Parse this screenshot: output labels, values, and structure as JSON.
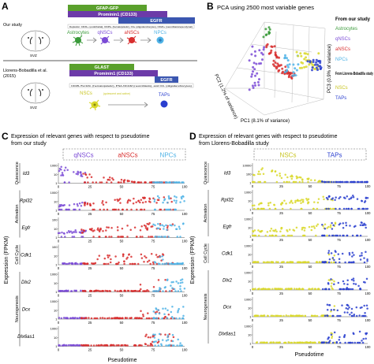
{
  "panel_letters": [
    "A",
    "B",
    "C",
    "D"
  ],
  "panel_a": {
    "our_study_label": "Our study",
    "llorens_label_1": "Llorens-Bobadilla et al.",
    "llorens_label_2": "(2015)",
    "svz_label": "SVZ",
    "top_bars": [
      "GFAP-GFP",
      "Prominin1 (CD133)",
      "EGFR"
    ],
    "top_depletion_note": "Depletion: CD31+ (endothelial), CD45+ (hematopoietic), O4+ (oligodendrocytes), CD24+ (neuroblasts/ependymal)",
    "top_cells": [
      "Astrocytes",
      "qNSCs",
      "aNSCs",
      "NPCs"
    ],
    "bottom_bars": [
      "GLAST",
      "Prominin1 (CD133)",
      "EGFR"
    ],
    "bottom_depletion_note": "CD45-/Ter119- (hematopoietic), PSA-NCAM (neuroblasts), and O4- (oligodendrocytes)",
    "bottom_cells": [
      "NSCs",
      "TAPs"
    ],
    "nscs_subnote": "(quiescent and active)"
  },
  "panel_b": {
    "title": "PCA using 2500 most variable genes",
    "pc1_label": "PC1 (8.1% of variance)",
    "pc2_label": "PC2 (1.2% of variance)",
    "pc3_label": "PC3 (0.9% of variance)",
    "legend_ours_title": "From our study",
    "legend_ours": [
      "Astrocytes",
      "qNSCs",
      "aNSCs",
      "NPCs"
    ],
    "legend_llorens_title": "From Llorens-Bobadilla study",
    "legend_llorens": [
      "NSCs",
      "TAPs"
    ]
  },
  "panel_c": {
    "title_1": "Expression of relevant genes with respect to pseudotime",
    "title_2": "from our study",
    "groups": [
      "qNSCs",
      "aNSCs",
      "NPCs"
    ],
    "ylabel": "Expression (FPKM)",
    "xlabel": "Pseudotime"
  },
  "panel_d": {
    "title_1": "Expression of relevant genes with respect to pseudotime",
    "title_2": "from Llorens-Bobadilla study",
    "groups": [
      "NSCs",
      "TAPs"
    ],
    "ylabel": "Expression (FPKM)",
    "xlabel": "Pseudotime"
  },
  "categories": [
    "Quiescence",
    "Activation",
    "Cell Cycle",
    "Neurogenesis"
  ],
  "colors": {
    "qNSCs": "#7b4bd6",
    "aNSCs": "#d82e2e",
    "NPCs": "#4fb3e6",
    "Astrocytes": "#3a9a3a",
    "NSCs": "#d9d82a",
    "TAPs": "#2a3fcf",
    "green_bar": "#5aa02c",
    "purple_bar": "#6c3aa8",
    "blue_bar": "#3a56b0"
  },
  "chart_data": [
    {
      "type": "scatter",
      "title": "PCA using 2500 most variable genes",
      "axes": [
        "PC1 (8.1% of variance)",
        "PC2 (1.2% of variance)",
        "PC3 (0.9% of variance)"
      ],
      "series": [
        {
          "name": "Astrocytes",
          "color": "#3a9a3a"
        },
        {
          "name": "qNSCs",
          "color": "#7b4bd6"
        },
        {
          "name": "aNSCs",
          "color": "#d82e2e"
        },
        {
          "name": "NPCs",
          "color": "#4fb3e6"
        },
        {
          "name": "NSCs",
          "color": "#d9d82a"
        },
        {
          "name": "TAPs",
          "color": "#2a3fcf"
        }
      ]
    },
    {
      "type": "scatter",
      "title": "Expression of relevant genes with respect to pseudotime from our study",
      "xlabel": "Pseudotime",
      "ylabel": "Expression (FPKM)",
      "x_ticks": [
        "0",
        "25",
        "50",
        "75",
        "100"
      ],
      "xlim": [
        0,
        100
      ],
      "y_ticks": [
        "1",
        "10",
        "100",
        "1000"
      ],
      "yscale": "log",
      "series": [
        {
          "name": "qNSCs",
          "color": "#7b4bd6",
          "x_range": [
            0,
            22
          ]
        },
        {
          "name": "aNSCs",
          "color": "#d82e2e",
          "x_range": [
            18,
            92
          ]
        },
        {
          "name": "NPCs",
          "color": "#4fb3e6",
          "x_range": [
            75,
            100
          ]
        }
      ],
      "genes": [
        {
          "name": "Id3",
          "category": "Quiescence",
          "ymax_label": "1000",
          "y_ticks": [
            "1000",
            "10",
            "1"
          ],
          "trend": "down"
        },
        {
          "name": "Rpl32",
          "category": "Activation",
          "ymax_label": "1000",
          "y_ticks": [
            "1000",
            "10",
            "1"
          ],
          "trend": "up"
        },
        {
          "name": "Egfr",
          "category": "Activation",
          "ymax_label": "100",
          "y_ticks": [
            "100",
            "10",
            "1"
          ],
          "trend": "up"
        },
        {
          "name": "Cdk1",
          "category": "Cell Cycle",
          "ymax_label": "100",
          "y_ticks": [
            "100",
            "10",
            "1"
          ],
          "trend": "mid"
        },
        {
          "name": "Dlx2",
          "category": "Neurogenesis",
          "ymax_label": "1000",
          "y_ticks": [
            "1000",
            "10",
            "1"
          ],
          "trend": "late"
        },
        {
          "name": "Dcx",
          "category": "Neurogenesis",
          "ymax_label": "1000",
          "y_ticks": [
            "1000",
            "10",
            "1"
          ],
          "trend": "late"
        },
        {
          "name": "Dlx6as1",
          "category": "Neurogenesis",
          "ymax_label": "1000",
          "y_ticks": [
            "1000",
            "10",
            "1"
          ],
          "trend": "late"
        }
      ]
    },
    {
      "type": "scatter",
      "title": "Expression of relevant genes with respect to pseudotime from Llorens-Bobadilla study",
      "xlabel": "Pseudotime",
      "ylabel": "Expression (FPKM)",
      "x_ticks": [
        "0",
        "25",
        "50",
        "75",
        "100"
      ],
      "xlim": [
        0,
        100
      ],
      "yscale": "log",
      "series": [
        {
          "name": "NSCs",
          "color": "#d9d82a",
          "x_range": [
            0,
            72
          ]
        },
        {
          "name": "TAPs",
          "color": "#2a3fcf",
          "x_range": [
            60,
            100
          ]
        }
      ],
      "genes": [
        {
          "name": "Id3",
          "category": "Quiescence",
          "y_ticks": [
            "10000",
            "100",
            "1"
          ],
          "trend": "down"
        },
        {
          "name": "Rpl32",
          "category": "Activation",
          "y_ticks": [
            "1000",
            "10",
            "1"
          ],
          "trend": "up"
        },
        {
          "name": "Egfr",
          "category": "Activation",
          "y_ticks": [
            "1000",
            "10",
            "1"
          ],
          "trend": "up"
        },
        {
          "name": "Cdk1",
          "category": "Cell Cycle",
          "y_ticks": [
            "1000",
            "10",
            "1"
          ],
          "trend": "late"
        },
        {
          "name": "Dlx2",
          "category": "Neurogenesis",
          "y_ticks": [
            "1000",
            "10",
            "1"
          ],
          "trend": "late"
        },
        {
          "name": "Dcx",
          "category": "Neurogenesis",
          "y_ticks": [
            "1000",
            "10",
            "1"
          ],
          "trend": "late"
        },
        {
          "name": "Dlx6as1",
          "category": "Neurogenesis",
          "y_ticks": [
            "1000",
            "10",
            "1"
          ],
          "trend": "late"
        }
      ]
    }
  ]
}
